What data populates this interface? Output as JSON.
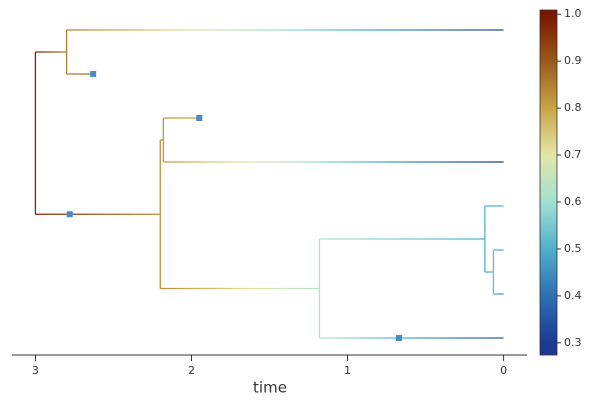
{
  "chart_data": {
    "type": "tree",
    "x_label": "time",
    "xlim": [
      3.15,
      -0.15
    ],
    "xticks": [
      3,
      2,
      1,
      0
    ],
    "marker_color": "#4a88c6",
    "colorbar": {
      "ylim": [
        0.274,
        1.009
      ],
      "yticks": [
        0.3,
        0.4,
        0.5,
        0.6,
        0.7,
        0.8,
        0.9,
        {
          "value": 1,
          "label": "1.0"
        }
      ],
      "colormap": [
        {
          "value": 0.3,
          "color": "#1b3a94"
        },
        {
          "value": 0.4,
          "color": "#2f6fb3"
        },
        {
          "value": 0.5,
          "color": "#4fb0cc"
        },
        {
          "value": 0.6,
          "color": "#a3e0d3"
        },
        {
          "value": 0.7,
          "color": "#e3e6a8"
        },
        {
          "value": 0.8,
          "color": "#c9a447"
        },
        {
          "value": 0.9,
          "color": "#9a5a1a"
        },
        {
          "value": 1,
          "color": "#7a1500"
        }
      ]
    },
    "tree": {
      "time": 3,
      "value": 0.98,
      "children": [
        {
          "time": 2.8,
          "value": 0.85,
          "children": [
            {
              "time": 0,
              "value": 0.33
            },
            {
              "time": 2.63,
              "value": 0.88,
              "marker_time": 2.63
            }
          ]
        },
        {
          "time": 2.2,
          "value": 0.83,
          "marker_time": 2.78,
          "children": [
            {
              "time": 2.18,
              "value": 0.82,
              "children": [
                {
                  "time": 1.95,
                  "value": 0.8,
                  "marker_time": 1.95
                },
                {
                  "time": 0,
                  "value": 0.3
                }
              ]
            },
            {
              "time": 1.18,
              "value": 0.62,
              "children": [
                {
                  "time": 0.12,
                  "value": 0.5,
                  "children": [
                    {
                      "time": 0,
                      "value": 0.5
                    },
                    {
                      "time": 0.065,
                      "value": 0.52,
                      "children": [
                        {
                          "time": 0,
                          "value": 0.5
                        },
                        {
                          "time": 0,
                          "value": 0.47
                        }
                      ]
                    }
                  ]
                },
                {
                  "time": 0,
                  "value": 0.36,
                  "marker_time": 0.67
                }
              ]
            }
          ]
        }
      ]
    }
  }
}
